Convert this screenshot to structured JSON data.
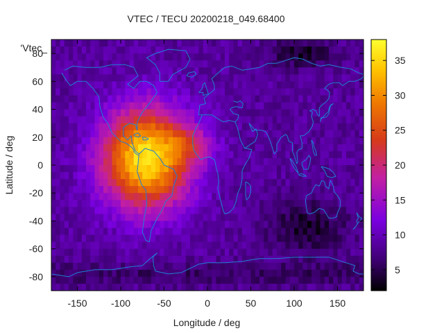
{
  "chart_data": {
    "type": "heatmap",
    "title": "VTEC / TECU 20200218_049.68400",
    "xlabel": "Longitude / deg",
    "ylabel": "Latitude / deg",
    "xlim": [
      -180,
      180
    ],
    "ylim": [
      -90,
      90
    ],
    "xticks": [
      -150,
      -100,
      -50,
      0,
      50,
      100,
      150
    ],
    "yticks": [
      -80,
      -60,
      -40,
      -20,
      0,
      20,
      40,
      60,
      80
    ],
    "xtick_labels": [
      "-150",
      "-100",
      "-50",
      "0",
      "50",
      "100",
      "150"
    ],
    "ytick_labels": [
      "-80",
      "-60",
      "-40",
      "-20",
      "0",
      "20",
      "40",
      "60",
      "80"
    ],
    "legend_label": "'Vtec_",
    "colorbar": {
      "min": 2,
      "max": 38,
      "ticks": [
        5,
        10,
        15,
        20,
        25,
        30,
        35
      ],
      "tick_labels": [
        "5",
        "10",
        "15",
        "20",
        "25",
        "30",
        "35"
      ]
    },
    "grid": false,
    "field": {
      "background_tecu": 8.5,
      "peak_center_lon_lat": [
        -70,
        5
      ],
      "peak_tecu": 36.5,
      "note": "TEC enhancement centered over the Americas / Atlantic; depletion over Asia-Pacific night side"
    },
    "coastline_color": "#1f7fd6"
  }
}
